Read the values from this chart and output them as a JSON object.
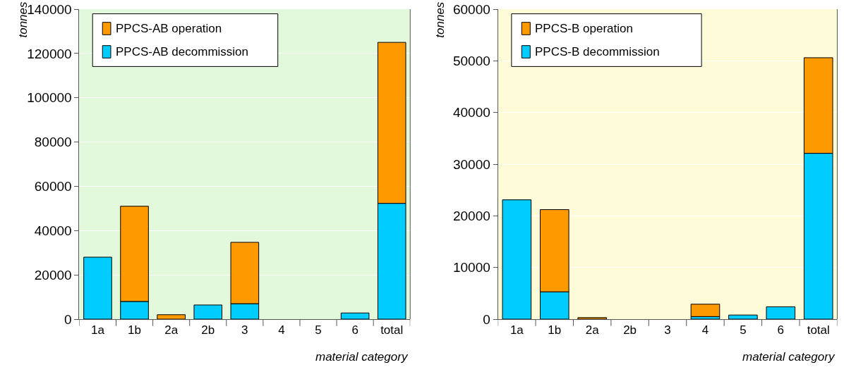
{
  "chart_data": [
    {
      "type": "bar",
      "stacked": true,
      "categories": [
        "1a",
        "1b",
        "2a",
        "2b",
        "3",
        "4",
        "5",
        "6",
        "total"
      ],
      "xlabel": "material category",
      "ylabel": "tonnes",
      "ylim": [
        0,
        140000
      ],
      "yticks": [
        0,
        20000,
        40000,
        60000,
        80000,
        100000,
        120000,
        140000
      ],
      "grid": "y",
      "legend": "top left",
      "series": [
        {
          "name": "PPCS-AB decommission",
          "color": "#00ccff",
          "values": [
            28000,
            8000,
            null,
            6400,
            7000,
            null,
            null,
            2800,
            52300
          ]
        },
        {
          "name": "PPCS-AB operation",
          "color": "#ff9900",
          "values": [
            null,
            43000,
            2000,
            null,
            27700,
            null,
            null,
            null,
            72700
          ]
        }
      ]
    },
    {
      "type": "bar",
      "stacked": true,
      "categories": [
        "1a",
        "1b",
        "2a",
        "2b",
        "3",
        "4",
        "5",
        "6",
        "total"
      ],
      "xlabel": "material category",
      "ylabel": "tonnes",
      "ylim": [
        0,
        60000
      ],
      "yticks": [
        0,
        10000,
        20000,
        30000,
        40000,
        50000,
        60000
      ],
      "grid": "y",
      "legend": "top left",
      "series": [
        {
          "name": "PPCS-B decommission",
          "color": "#00ccff",
          "values": [
            23100,
            5300,
            null,
            null,
            null,
            500,
            800,
            2400,
            32100
          ]
        },
        {
          "name": "PPCS-B operation",
          "color": "#ff9900",
          "values": [
            null,
            15900,
            300,
            null,
            null,
            2400,
            null,
            null,
            18500
          ]
        }
      ]
    }
  ]
}
